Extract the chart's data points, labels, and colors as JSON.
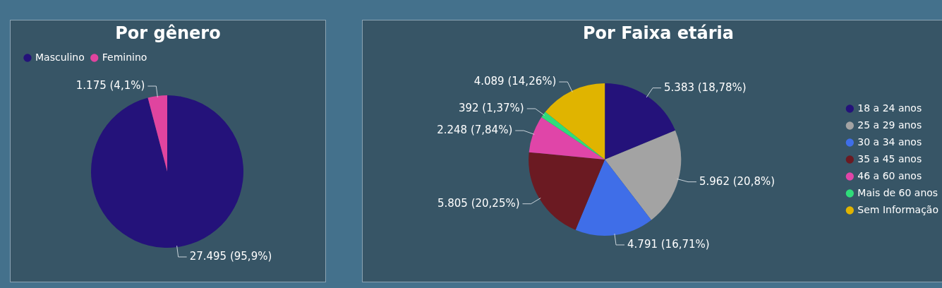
{
  "chart_data": [
    {
      "type": "pie",
      "title": "Por gênero",
      "categories": [
        "Masculino",
        "Feminino"
      ],
      "values": [
        27495,
        1175
      ],
      "colors": [
        "#24127a",
        "#e0449f"
      ],
      "value_labels": [
        "27.495 (95,9%)",
        "1.175 (4,1%)"
      ],
      "legend": "top left"
    },
    {
      "type": "pie",
      "title": "Por Faixa etária",
      "categories": [
        "18 a 24 anos",
        "25 a 29 anos",
        "30 a 34 anos",
        "35 a 45 anos",
        "46 a 60 anos",
        "Mais de 60 anos",
        "Sem Informação"
      ],
      "values": [
        5383,
        5962,
        4791,
        5805,
        2248,
        392,
        4089
      ],
      "colors": [
        "#24127a",
        "#a3a3a3",
        "#3f6ee8",
        "#6b1a22",
        "#e045a8",
        "#2fdc7a",
        "#e0b400"
      ],
      "value_labels": [
        "5.383 (18,78%)",
        "5.962 (20,8%)",
        "4.791 (16,71%)",
        "5.805 (20,25%)",
        "2.248 (7,84%)",
        "392 (1,37%)",
        "4.089 (14,26%)"
      ],
      "legend": "right"
    }
  ]
}
